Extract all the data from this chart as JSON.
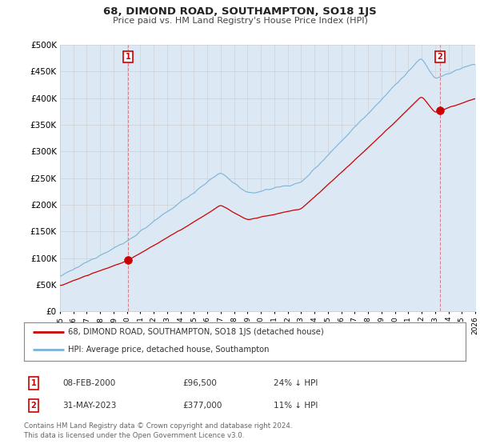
{
  "title": "68, DIMOND ROAD, SOUTHAMPTON, SO18 1JS",
  "subtitle": "Price paid vs. HM Land Registry's House Price Index (HPI)",
  "ylim": [
    0,
    500000
  ],
  "yticks": [
    0,
    50000,
    100000,
    150000,
    200000,
    250000,
    300000,
    350000,
    400000,
    450000,
    500000
  ],
  "hpi_color": "#7ab3d8",
  "hpi_fill": "#dce9f5",
  "price_color": "#cc0000",
  "sale1_year": 2000.08,
  "sale1_price": 96500,
  "sale2_year": 2023.37,
  "sale2_price": 377000,
  "legend_line1": "68, DIMOND ROAD, SOUTHAMPTON, SO18 1JS (detached house)",
  "legend_line2": "HPI: Average price, detached house, Southampton",
  "annotation1_date": "08-FEB-2000",
  "annotation1_price": "£96,500",
  "annotation1_hpi": "24% ↓ HPI",
  "annotation2_date": "31-MAY-2023",
  "annotation2_price": "£377,000",
  "annotation2_hpi": "11% ↓ HPI",
  "footnote": "Contains HM Land Registry data © Crown copyright and database right 2024.\nThis data is licensed under the Open Government Licence v3.0.",
  "bg_color": "#ffffff",
  "grid_color": "#cccccc",
  "chart_bg": "#dce9f5"
}
